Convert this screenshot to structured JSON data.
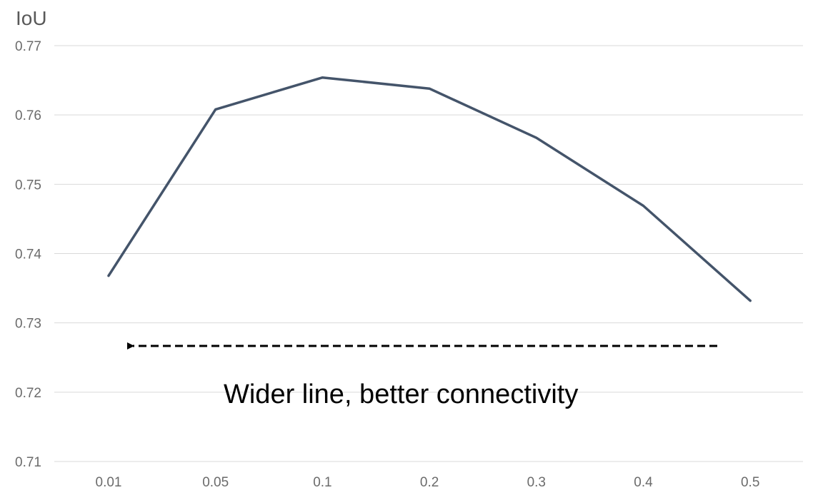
{
  "chart_data": {
    "type": "line",
    "title": "",
    "xlabel": "",
    "ylabel": "IoU",
    "categories": [
      "0.01",
      "0.05",
      "0.1",
      "0.2",
      "0.3",
      "0.4",
      "0.5"
    ],
    "series": [
      {
        "values": [
          0.7368,
          0.7608,
          0.7654,
          0.7638,
          0.7567,
          0.7469,
          0.7332
        ]
      }
    ],
    "ylim": [
      0.71,
      0.77
    ],
    "yticks": [
      "0.71",
      "0.72",
      "0.73",
      "0.74",
      "0.75",
      "0.76",
      "0.77"
    ],
    "grid": "horizontal",
    "legend": "none",
    "annotation": {
      "text": "Wider line, better connectivity",
      "arrow_direction": "left"
    },
    "colors": {
      "series": "#44546a",
      "grid": "#d9d9d9",
      "text": "#6b6b6b"
    }
  }
}
